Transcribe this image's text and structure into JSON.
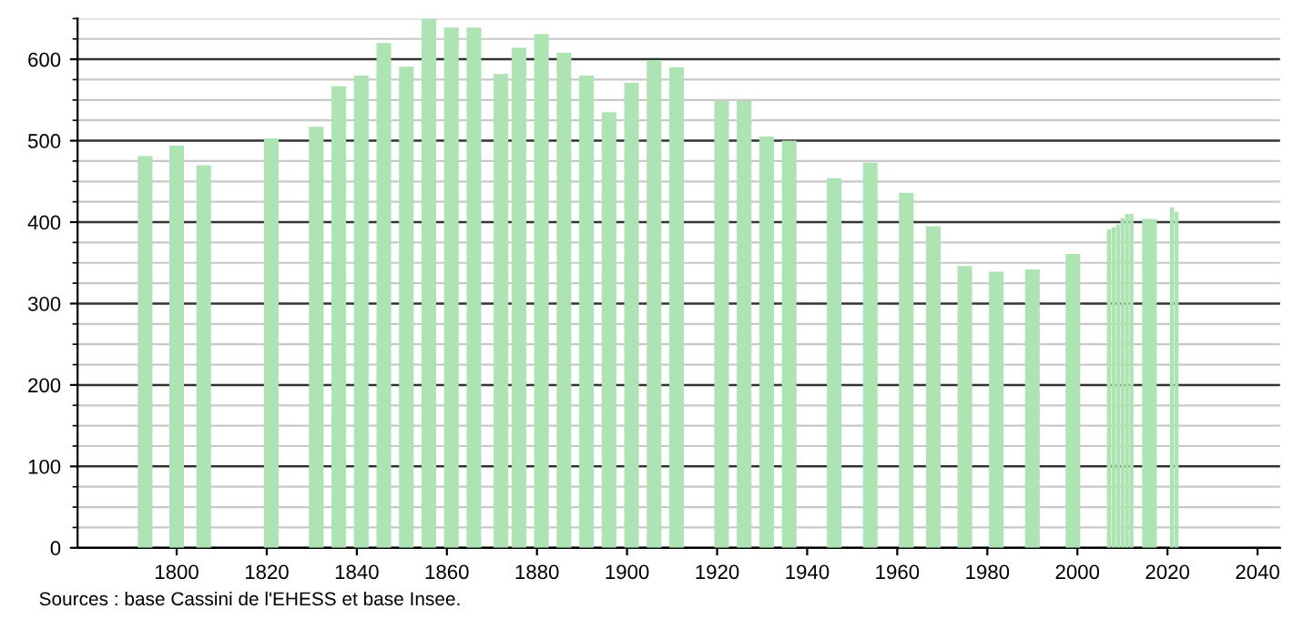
{
  "chart_data": {
    "type": "bar",
    "x": [
      1793,
      1800,
      1806,
      1821,
      1831,
      1836,
      1841,
      1846,
      1851,
      1856,
      1861,
      1866,
      1872,
      1876,
      1881,
      1886,
      1891,
      1896,
      1901,
      1906,
      1911,
      1921,
      1926,
      1931,
      1936,
      1946,
      1954,
      1962,
      1968,
      1975,
      1982,
      1990,
      1999,
      2007,
      2008,
      2009,
      2010,
      2011,
      2012,
      2016,
      2021,
      2022
    ],
    "values": [
      481,
      494,
      470,
      503,
      517,
      567,
      580,
      620,
      591,
      650,
      639,
      639,
      582,
      614,
      631,
      608,
      580,
      535,
      571,
      599,
      590,
      549,
      549,
      505,
      500,
      454,
      473,
      436,
      395,
      346,
      339,
      342,
      361,
      391,
      394,
      397,
      405,
      410,
      410,
      404,
      418,
      413
    ],
    "color": "#aee3b4",
    "xlim": [
      1778,
      2045
    ],
    "ylim": [
      0,
      650
    ],
    "xticks": [
      1800,
      1820,
      1840,
      1860,
      1880,
      1900,
      1920,
      1940,
      1960,
      1980,
      2000,
      2020,
      2040
    ],
    "yticks": [
      0,
      100,
      200,
      300,
      400,
      500,
      600
    ],
    "grid": "y",
    "annotations": [
      "Sources : base Cassini de l'EHESS et base Insee."
    ]
  }
}
